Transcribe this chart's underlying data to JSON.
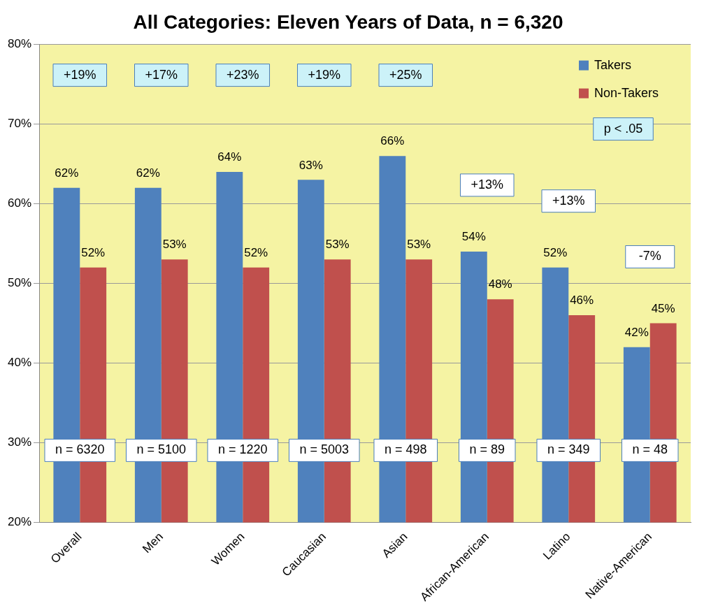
{
  "chart_data": {
    "type": "bar",
    "title": "All Categories: Eleven Years of Data, n = 6,320",
    "categories": [
      "Overall",
      "Men",
      "Women",
      "Caucasian",
      "Asian",
      "African-American",
      "Latino",
      "Native-American"
    ],
    "series": [
      {
        "name": "Takers",
        "color": "#4f81bd",
        "values": [
          62,
          62,
          64,
          63,
          66,
          54,
          52,
          42
        ],
        "value_labels": [
          "62%",
          "62%",
          "64%",
          "63%",
          "66%",
          "54%",
          "52%",
          "42%"
        ]
      },
      {
        "name": "Non-Takers",
        "color": "#c0504d",
        "values": [
          52,
          53,
          52,
          53,
          53,
          48,
          46,
          45
        ],
        "value_labels": [
          "52%",
          "53%",
          "52%",
          "53%",
          "53%",
          "48%",
          "46%",
          "45%"
        ]
      }
    ],
    "ylim": [
      20,
      80
    ],
    "yticks": [
      {
        "value": 20,
        "label": "20%"
      },
      {
        "value": 30,
        "label": "30%"
      },
      {
        "value": 40,
        "label": "40%"
      },
      {
        "value": 50,
        "label": "50%"
      },
      {
        "value": 60,
        "label": "60%"
      },
      {
        "value": 70,
        "label": "70%"
      },
      {
        "value": 80,
        "label": "80%"
      }
    ],
    "grid": "y",
    "legend": "top right",
    "annotations": [
      "+19%",
      "+17%",
      "+23%",
      "+19%",
      "+25%",
      "+13%",
      "+13%",
      "-7%",
      "p < .05",
      "n = 6320",
      "n = 5100",
      "n = 1220",
      "n = 5003",
      "n = 498",
      "n = 89",
      "n = 349",
      "n = 48"
    ]
  }
}
